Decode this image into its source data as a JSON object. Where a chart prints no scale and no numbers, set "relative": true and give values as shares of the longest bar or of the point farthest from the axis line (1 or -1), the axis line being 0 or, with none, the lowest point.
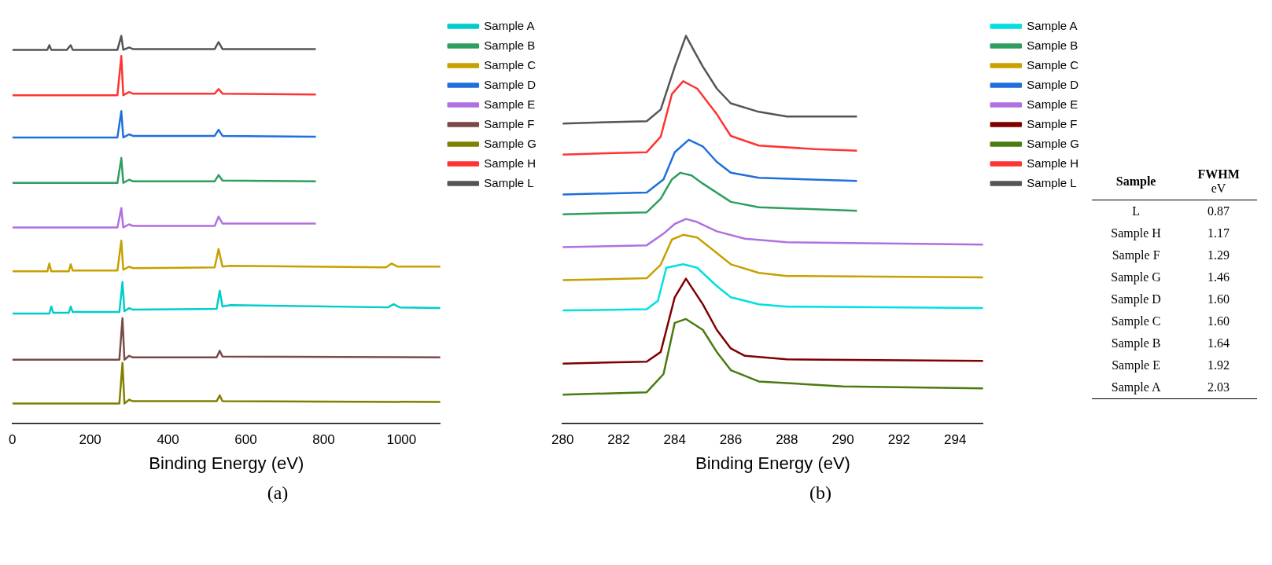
{
  "chart_data": [
    {
      "type": "line",
      "relative": true,
      "xlabel": "Binding Energy (eV)",
      "xlim": [
        0,
        1100
      ],
      "xticks": [
        0,
        200,
        400,
        600,
        800,
        1000
      ],
      "legend": "top right",
      "marker": "none",
      "grid": false,
      "annotations": [
        "(a)"
      ],
      "series": [
        {
          "name": "Sample A",
          "color": "#00cccc",
          "x": [
            0,
            95,
            100,
            105,
            145,
            150,
            155,
            275,
            283,
            288,
            300,
            310,
            525,
            533,
            540,
            560,
            965,
            980,
            995,
            1100
          ],
          "values": [
            0.284,
            0.284,
            0.302,
            0.286,
            0.286,
            0.302,
            0.288,
            0.288,
            0.365,
            0.29,
            0.298,
            0.294,
            0.296,
            0.343,
            0.302,
            0.306,
            0.3,
            0.308,
            0.3,
            0.298
          ]
        },
        {
          "name": "Sample B",
          "color": "#2e9e5e",
          "x": [
            0,
            270,
            280,
            285,
            300,
            310,
            520,
            530,
            540,
            780
          ],
          "values": [
            0.621,
            0.621,
            0.685,
            0.621,
            0.629,
            0.625,
            0.625,
            0.641,
            0.627,
            0.625
          ]
        },
        {
          "name": "Sample C",
          "color": "#c8a000",
          "x": [
            0,
            90,
            95,
            100,
            145,
            150,
            155,
            270,
            280,
            285,
            300,
            310,
            520,
            530,
            540,
            560,
            960,
            975,
            990,
            1100
          ],
          "values": [
            0.393,
            0.393,
            0.413,
            0.393,
            0.393,
            0.411,
            0.395,
            0.395,
            0.472,
            0.397,
            0.405,
            0.401,
            0.403,
            0.45,
            0.405,
            0.407,
            0.403,
            0.413,
            0.405,
            0.405
          ]
        },
        {
          "name": "Sample D",
          "color": "#1f6fdc",
          "x": [
            0,
            270,
            280,
            285,
            300,
            310,
            520,
            530,
            540,
            780
          ],
          "values": [
            0.738,
            0.738,
            0.806,
            0.738,
            0.746,
            0.742,
            0.742,
            0.758,
            0.742,
            0.74
          ]
        },
        {
          "name": "Sample E",
          "color": "#b070e0",
          "x": [
            0,
            270,
            280,
            285,
            300,
            310,
            520,
            530,
            540,
            780
          ],
          "values": [
            0.506,
            0.506,
            0.556,
            0.506,
            0.514,
            0.51,
            0.51,
            0.534,
            0.516,
            0.516
          ]
        },
        {
          "name": "Sample F",
          "color": "#7a4a4a",
          "x": [
            0,
            275,
            283,
            288,
            300,
            310,
            525,
            533,
            540,
            1100
          ],
          "values": [
            0.165,
            0.165,
            0.272,
            0.165,
            0.175,
            0.171,
            0.171,
            0.188,
            0.173,
            0.171
          ]
        },
        {
          "name": "Sample G",
          "color": "#808000",
          "x": [
            0,
            275,
            283,
            288,
            300,
            310,
            525,
            533,
            540,
            1100
          ],
          "values": [
            0.052,
            0.052,
            0.157,
            0.052,
            0.062,
            0.058,
            0.058,
            0.073,
            0.058,
            0.056
          ]
        },
        {
          "name": "Sample H",
          "color": "#ff3333",
          "x": [
            0,
            270,
            280,
            285,
            300,
            310,
            520,
            530,
            540,
            780
          ],
          "values": [
            0.847,
            0.847,
            0.948,
            0.847,
            0.855,
            0.851,
            0.851,
            0.863,
            0.851,
            0.849
          ]
        },
        {
          "name": "Sample L",
          "color": "#555555",
          "x": [
            0,
            90,
            95,
            100,
            140,
            150,
            155,
            200,
            270,
            280,
            285,
            300,
            310,
            400,
            520,
            530,
            540,
            600,
            780
          ],
          "values": [
            0.964,
            0.964,
            0.976,
            0.964,
            0.964,
            0.976,
            0.964,
            0.964,
            0.964,
            1.0,
            0.964,
            0.97,
            0.966,
            0.966,
            0.966,
            0.984,
            0.966,
            0.966,
            0.966
          ]
        }
      ]
    },
    {
      "type": "line",
      "relative": true,
      "xlabel": "Binding Energy (eV)",
      "xlim": [
        280,
        295
      ],
      "xticks": [
        280,
        282,
        284,
        286,
        288,
        290,
        292,
        294
      ],
      "legend": "top right",
      "marker": "none",
      "grid": false,
      "annotations": [
        "(b)"
      ],
      "series": [
        {
          "name": "Sample A",
          "color": "#00e0e0",
          "x": [
            280,
            283,
            283.4,
            283.7,
            284.3,
            284.8,
            285.5,
            286,
            287,
            288,
            295
          ],
          "values": [
            0.292,
            0.295,
            0.317,
            0.402,
            0.411,
            0.402,
            0.355,
            0.326,
            0.308,
            0.302,
            0.298
          ]
        },
        {
          "name": "Sample B",
          "color": "#2e9e5e",
          "x": [
            280,
            283,
            283.5,
            283.9,
            284.2,
            284.6,
            285,
            286,
            287,
            290.5
          ],
          "values": [
            0.54,
            0.545,
            0.58,
            0.63,
            0.647,
            0.64,
            0.619,
            0.572,
            0.558,
            0.549
          ]
        },
        {
          "name": "Sample C",
          "color": "#c8a000",
          "x": [
            280,
            283,
            283.5,
            283.9,
            284.3,
            284.8,
            285.5,
            286,
            287,
            288,
            295
          ],
          "values": [
            0.37,
            0.375,
            0.41,
            0.475,
            0.487,
            0.48,
            0.44,
            0.411,
            0.389,
            0.381,
            0.377
          ]
        },
        {
          "name": "Sample D",
          "color": "#1f6fdc",
          "x": [
            280,
            283,
            283.6,
            284,
            284.5,
            285,
            285.5,
            286,
            287,
            290.5
          ],
          "values": [
            0.591,
            0.596,
            0.63,
            0.7,
            0.732,
            0.715,
            0.675,
            0.647,
            0.634,
            0.626
          ]
        },
        {
          "name": "Sample E",
          "color": "#b070e0",
          "x": [
            280,
            283,
            283.6,
            284,
            284.4,
            284.8,
            285.5,
            286.5,
            288,
            295
          ],
          "values": [
            0.455,
            0.46,
            0.49,
            0.515,
            0.528,
            0.52,
            0.496,
            0.477,
            0.468,
            0.462
          ]
        },
        {
          "name": "Sample F",
          "color": "#800000",
          "x": [
            280,
            283,
            283.5,
            284,
            284.4,
            285,
            285.5,
            286,
            286.5,
            288,
            295
          ],
          "values": [
            0.155,
            0.16,
            0.185,
            0.326,
            0.374,
            0.308,
            0.242,
            0.194,
            0.175,
            0.166,
            0.162
          ]
        },
        {
          "name": "Sample G",
          "color": "#4a7a10",
          "x": [
            280,
            283,
            283.6,
            284,
            284.4,
            285,
            285.5,
            286,
            287,
            290,
            295
          ],
          "values": [
            0.075,
            0.081,
            0.128,
            0.26,
            0.27,
            0.242,
            0.185,
            0.138,
            0.109,
            0.096,
            0.091
          ]
        },
        {
          "name": "Sample H",
          "color": "#ff3333",
          "x": [
            280,
            283,
            283.5,
            283.9,
            284.3,
            284.8,
            285.5,
            286,
            287,
            289,
            290.5
          ],
          "values": [
            0.694,
            0.7,
            0.74,
            0.85,
            0.883,
            0.864,
            0.798,
            0.742,
            0.717,
            0.708,
            0.704
          ]
        },
        {
          "name": "Sample L",
          "color": "#555555",
          "x": [
            280,
            283,
            283.5,
            284,
            284.4,
            284.7,
            285,
            285.5,
            286,
            287,
            288,
            290.5
          ],
          "values": [
            0.774,
            0.78,
            0.81,
            0.92,
            1.0,
            0.96,
            0.921,
            0.864,
            0.826,
            0.804,
            0.792,
            0.792
          ]
        }
      ]
    },
    {
      "type": "other",
      "xlabel": "Sample",
      "ylabel": "FWHM",
      "annotations": [
        "eV"
      ],
      "value_labels": [
        "0.87",
        "1.17",
        "1.29",
        "1.46",
        "1.60",
        "1.60",
        "1.64",
        "1.92",
        "2.03"
      ],
      "categories": [
        "L",
        "Sample H",
        "Sample F",
        "Sample G",
        "Sample D",
        "Sample C",
        "Sample B",
        "Sample E",
        "Sample A"
      ],
      "values": [
        0.87,
        1.17,
        1.29,
        1.46,
        1.6,
        1.6,
        1.64,
        1.92,
        2.03
      ]
    }
  ]
}
